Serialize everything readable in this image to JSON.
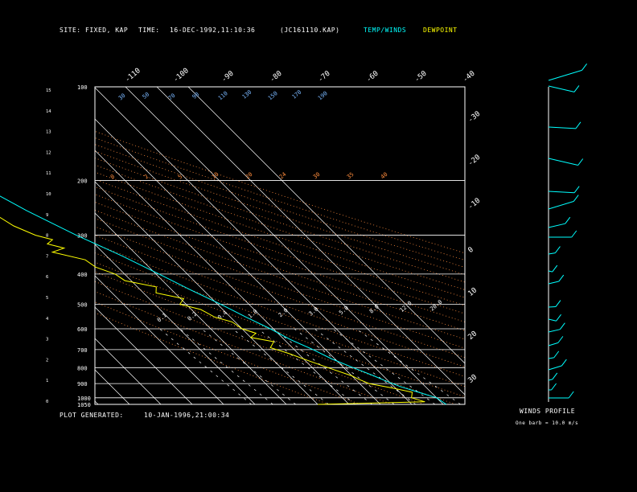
{
  "header": {
    "site_label": "SITE:",
    "site_value": "FIXED, KAP",
    "time_label": "TIME:",
    "time_value": "16-DEC-1992,11:10:36",
    "file_id": "(JC161110.KAP)",
    "temp_winds_label": "TEMP/WINDS",
    "dewpoint_label": "DEWPOINT",
    "colors": {
      "temp": "#00ffff",
      "dewpoint": "#ffff00",
      "text": "#ffffff"
    }
  },
  "footer": {
    "plot_generated_label": "PLOT GENERATED:",
    "plot_generated_value": "10-JAN-1996,21:00:34"
  },
  "winds_profile": {
    "title": "WINDS PROFILE",
    "note": "One barb = 10.0 m/s"
  },
  "chart_data": {
    "type": "line",
    "pressure_ticks": [
      100,
      200,
      300,
      400,
      500,
      600,
      700,
      800,
      900,
      1000,
      1050
    ],
    "height_ticks": [
      "0",
      "1",
      "2",
      "3",
      "4",
      "5",
      "6",
      "7",
      "8",
      "9",
      "10",
      "11",
      "12",
      "13",
      "14",
      "15"
    ],
    "top_temp_labels": [
      "-110",
      "-100",
      "-90",
      "-80",
      "-70",
      "-60",
      "-50",
      "-40"
    ],
    "right_temp_labels": [
      "-30",
      "-20",
      "-10",
      "0",
      "10",
      "20",
      "30"
    ],
    "mixing_ratio_labels": [
      "0.1",
      "0.2",
      "0.4",
      "1.0",
      "2.0",
      "3.0",
      "5.0",
      "8.0",
      "12.0",
      "20.0"
    ],
    "dry_adiabat_labels": [
      "0",
      "2",
      "5",
      "10",
      "20",
      "24",
      "30",
      "35",
      "40"
    ],
    "moist_adiabat_labels": [
      "30",
      "50",
      "70",
      "90",
      "110",
      "130",
      "150",
      "170",
      "190"
    ],
    "series": [
      {
        "color": "#00ffff",
        "points": [
          [
            1050,
            21
          ],
          [
            1000,
            20
          ],
          [
            960,
            16
          ],
          [
            920,
            12
          ],
          [
            880,
            9
          ],
          [
            850,
            7
          ],
          [
            800,
            3
          ],
          [
            750,
            -1
          ],
          [
            700,
            -4
          ],
          [
            650,
            -8
          ],
          [
            600,
            -11
          ],
          [
            550,
            -15
          ],
          [
            500,
            -19
          ],
          [
            450,
            -24
          ],
          [
            400,
            -29
          ],
          [
            350,
            -35
          ],
          [
            300,
            -43
          ],
          [
            250,
            -51
          ],
          [
            200,
            -59
          ],
          [
            150,
            -63
          ],
          [
            120,
            -65
          ],
          [
            100,
            -66
          ]
        ]
      },
      {
        "color": "#ffff00",
        "points": [
          [
            1050,
            -20
          ],
          [
            1030,
            15
          ],
          [
            1000,
            12
          ],
          [
            980,
            13
          ],
          [
            960,
            14
          ],
          [
            930,
            9
          ],
          [
            900,
            3
          ],
          [
            870,
            1
          ],
          [
            850,
            0
          ],
          [
            800,
            -5
          ],
          [
            760,
            -9
          ],
          [
            720,
            -13
          ],
          [
            690,
            -17
          ],
          [
            660,
            -14
          ],
          [
            640,
            -20
          ],
          [
            620,
            -17
          ],
          [
            600,
            -20
          ],
          [
            570,
            -21
          ],
          [
            550,
            -25
          ],
          [
            520,
            -27
          ],
          [
            500,
            -32
          ],
          [
            480,
            -29
          ],
          [
            460,
            -36
          ],
          [
            440,
            -34
          ],
          [
            420,
            -42
          ],
          [
            400,
            -43
          ],
          [
            380,
            -47
          ],
          [
            360,
            -48
          ],
          [
            340,
            -56
          ],
          [
            330,
            -51
          ],
          [
            320,
            -55
          ],
          [
            310,
            -52
          ],
          [
            300,
            -56
          ],
          [
            280,
            -60
          ],
          [
            250,
            -63
          ],
          [
            220,
            -66
          ],
          [
            200,
            -68
          ],
          [
            180,
            -74
          ],
          [
            150,
            -77
          ],
          [
            120,
            -79
          ],
          [
            100,
            -81
          ]
        ]
      }
    ],
    "wind_barbs": [
      [
        100,
        28
      ],
      [
        107,
        20
      ],
      [
        158,
        19
      ],
      [
        197,
        23
      ],
      [
        238,
        18
      ],
      [
        260,
        21
      ],
      [
        283,
        13
      ],
      [
        295,
        16
      ],
      [
        316,
        5
      ],
      [
        337,
        3
      ],
      [
        353,
        8
      ],
      [
        382,
        5
      ],
      [
        397,
        6
      ],
      [
        413,
        9
      ],
      [
        430,
        8
      ],
      [
        446,
        4
      ],
      [
        460,
        11
      ],
      [
        473,
        3
      ],
      [
        485,
        2
      ],
      [
        495,
        14
      ]
    ]
  }
}
